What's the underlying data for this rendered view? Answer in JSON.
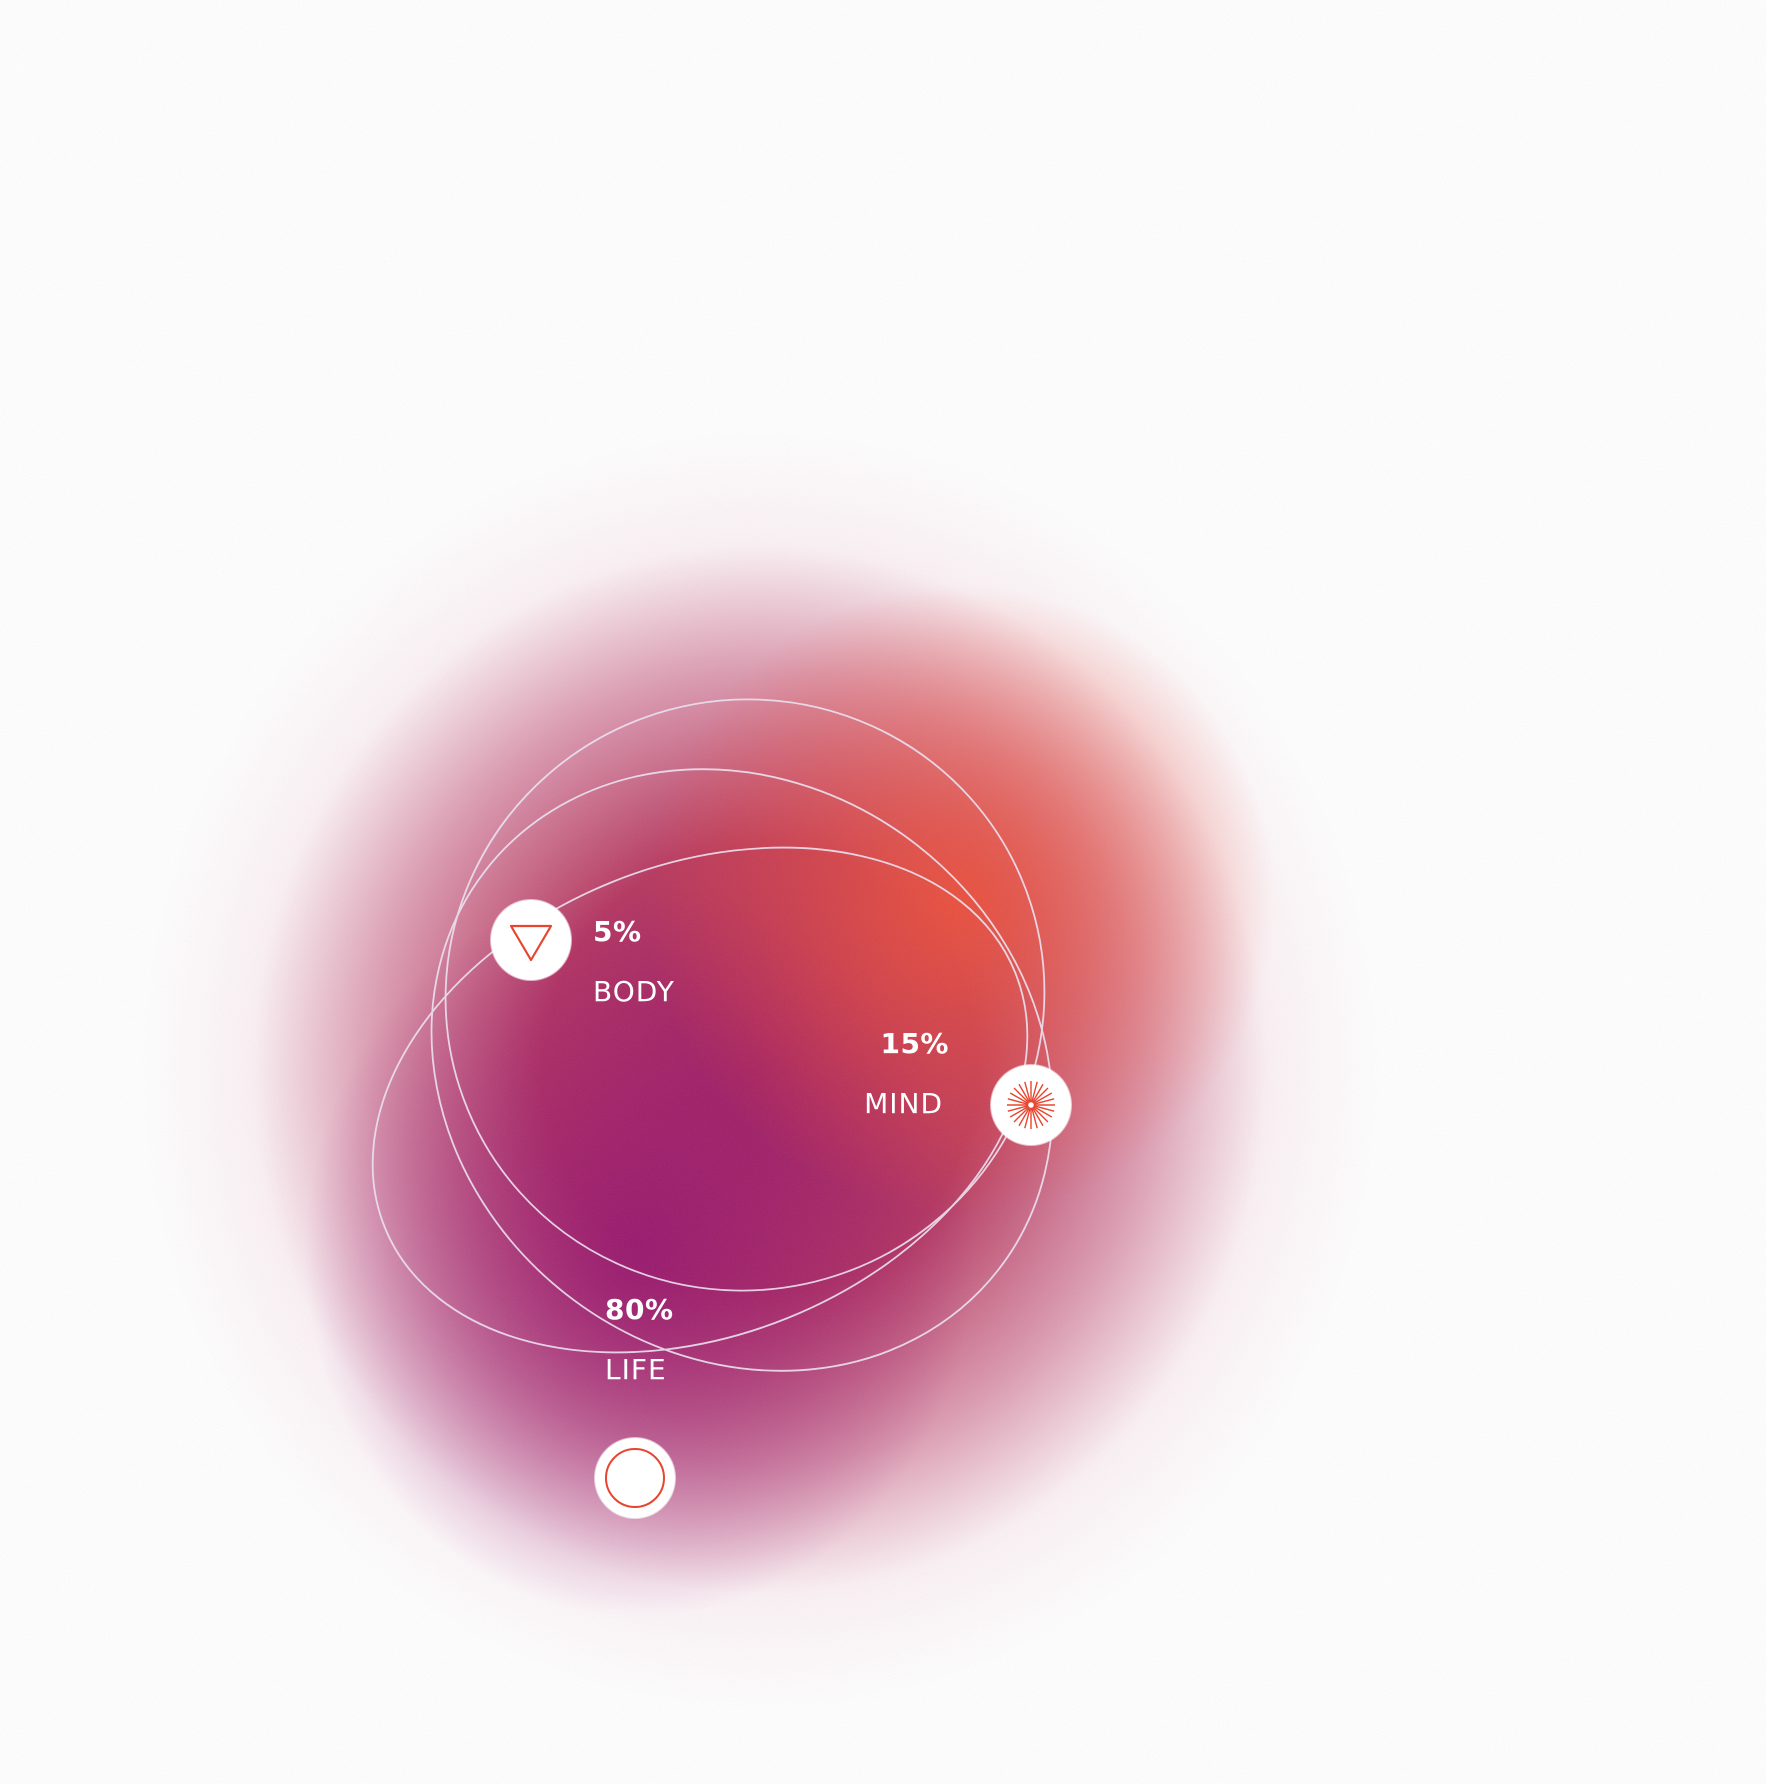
{
  "colors": {
    "accent": "#e8452f",
    "orbit_stroke": "#e9dfee",
    "node_fill": "#ffffff",
    "text": "#ffffff"
  },
  "items": [
    {
      "key": "body",
      "percent": "5%",
      "label": "BODY",
      "icon": "triangle-down-icon"
    },
    {
      "key": "mind",
      "percent": "15%",
      "label": "MIND",
      "icon": "sunburst-icon"
    },
    {
      "key": "life",
      "percent": "80%",
      "label": "LIFE",
      "icon": "circle-ring-icon"
    }
  ]
}
